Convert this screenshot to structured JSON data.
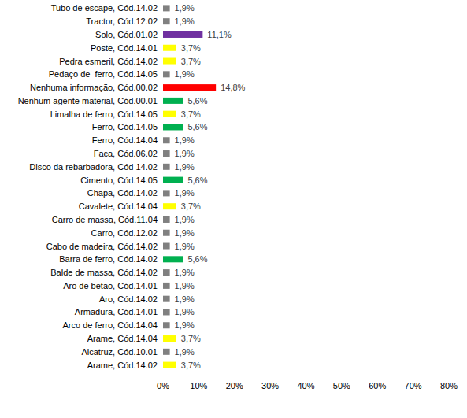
{
  "chart_data": {
    "type": "bar",
    "orientation": "horizontal",
    "categories": [
      "Tubo de escape, Cód.14.02",
      "Tractor, Cód.12.02",
      "Solo, Cód.01.02",
      "Poste, Cód.14.01",
      "Pedra esmeril, Cód.14.02",
      "Pedaço de  ferro, Cód.14.05",
      "Nenhuma informação, Cód.00.02",
      "Nenhum agente material, Cód.00.01",
      "Limalha de ferro, Cód.14.05",
      "Ferro, Cód.14.05",
      "Ferro, Cód.14.04",
      "Faca, Cód.06.02",
      "Disco da rebarbadora, Cód 14.02",
      "Cimento, Cód.14.05",
      "Chapa, Cód.14.02",
      "Cavalete, Cód.14.04",
      "Carro de massa, Cód.11.04",
      "Carro, Cód.12.02",
      "Cabo de madeira, Cód.14.02",
      "Barra de ferro, Cód.14.02",
      "Balde de massa, Cód.14.02",
      "Aro de betão, Cód.14.01",
      "Aro, Cód.14.02",
      "Armadura, Cód.14.01",
      "Arco de ferro, Cód.14.04",
      "Arame, Cód.14.04",
      "Alcatruz, Cód.10.01",
      "Arame, Cód.14.02"
    ],
    "values": [
      1.9,
      1.9,
      11.1,
      3.7,
      3.7,
      1.9,
      14.8,
      5.6,
      3.7,
      5.6,
      1.9,
      1.9,
      1.9,
      5.6,
      1.9,
      3.7,
      1.9,
      1.9,
      1.9,
      5.6,
      1.9,
      1.9,
      1.9,
      1.9,
      1.9,
      3.7,
      1.9,
      3.7
    ],
    "value_labels": [
      "1,9%",
      "1,9%",
      "11,1%",
      "3,7%",
      "3,7%",
      "1,9%",
      "14,8%",
      "5,6%",
      "3,7%",
      "5,6%",
      "1,9%",
      "1,9%",
      "1,9%",
      "5,6%",
      "1,9%",
      "3,7%",
      "1,9%",
      "1,9%",
      "1,9%",
      "5,6%",
      "1,9%",
      "1,9%",
      "1,9%",
      "1,9%",
      "1,9%",
      "3,7%",
      "1,9%",
      "3,7%"
    ],
    "colors": [
      "#808080",
      "#808080",
      "#7030a0",
      "#ffff00",
      "#ffff00",
      "#808080",
      "#ff0000",
      "#00b050",
      "#ffff00",
      "#00b050",
      "#808080",
      "#808080",
      "#808080",
      "#00b050",
      "#808080",
      "#ffff00",
      "#808080",
      "#808080",
      "#808080",
      "#00b050",
      "#808080",
      "#808080",
      "#808080",
      "#808080",
      "#808080",
      "#ffff00",
      "#808080",
      "#ffff00"
    ],
    "xlim": [
      0,
      80
    ],
    "xticks": [
      {
        "value": 0,
        "label": "0%"
      },
      {
        "value": 10,
        "label": "10%"
      },
      {
        "value": 20,
        "label": "20%"
      },
      {
        "value": 30,
        "label": "30%"
      },
      {
        "value": 40,
        "label": "40%"
      },
      {
        "value": 50,
        "label": "50%"
      },
      {
        "value": 60,
        "label": "60%"
      },
      {
        "value": 70,
        "label": "70%"
      },
      {
        "value": 80,
        "label": "80%"
      }
    ],
    "grid": false,
    "data_labels": true
  }
}
